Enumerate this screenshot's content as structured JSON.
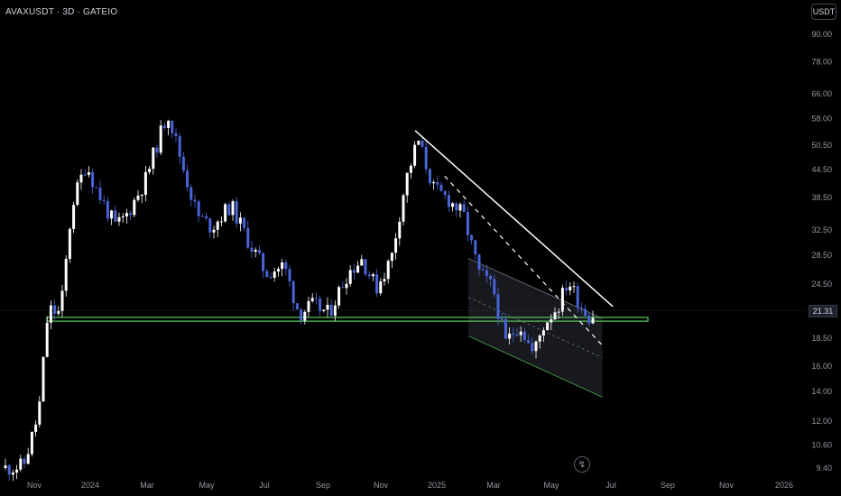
{
  "header": {
    "symbol_line": "AVAXUSDT · 3D · GATEIO"
  },
  "currency_button": "USDT",
  "last_price_label": "21.31",
  "tool_icon": "lightning-icon",
  "colors": {
    "background": "#000000",
    "candle_up": "#ffffff",
    "candle_down": "#4a64d8",
    "support_zone": "#4caf50",
    "trendline": "#ffffff",
    "channel_fill": "#2a2e39",
    "channel_line": "#4caf50",
    "axis_text": "#9598a1"
  },
  "chart_data": {
    "type": "candlestick",
    "title": "AVAXUSDT · 3D · GATEIO",
    "y_scale": "log",
    "y_ticks": [
      "90.00",
      "78.00",
      "66.00",
      "58.00",
      "50.50",
      "44.50",
      "38.50",
      "32.50",
      "28.50",
      "24.50",
      "18.50",
      "16.00",
      "14.00",
      "12.00",
      "10.60",
      "9.40"
    ],
    "x_ticks": [
      "Nov",
      "2024",
      "Mar",
      "May",
      "Jul",
      "Sep",
      "Nov",
      "2025",
      "Mar",
      "May",
      "Jul",
      "Sep",
      "Nov",
      "2026"
    ],
    "last_price": 21.31,
    "support_zone": [
      20.2,
      20.6
    ],
    "price_path": [
      [
        "2023-10-01",
        9.4
      ],
      [
        "2023-10-20",
        9.5
      ],
      [
        "2023-11-05",
        12.5
      ],
      [
        "2023-11-15",
        21.5
      ],
      [
        "2023-11-28",
        21.0
      ],
      [
        "2023-12-10",
        37
      ],
      [
        "2023-12-25",
        46
      ],
      [
        "2024-01-05",
        40
      ],
      [
        "2024-01-25",
        33
      ],
      [
        "2024-02-05",
        35
      ],
      [
        "2024-02-25",
        42
      ],
      [
        "2024-03-10",
        52
      ],
      [
        "2024-03-20",
        60
      ],
      [
        "2024-04-05",
        45
      ],
      [
        "2024-04-20",
        35
      ],
      [
        "2024-05-05",
        33
      ],
      [
        "2024-05-25",
        37
      ],
      [
        "2024-06-15",
        30
      ],
      [
        "2024-07-01",
        26
      ],
      [
        "2024-07-20",
        27
      ],
      [
        "2024-08-05",
        21
      ],
      [
        "2024-08-20",
        22
      ],
      [
        "2024-09-05",
        21
      ],
      [
        "2024-09-25",
        26
      ],
      [
        "2024-10-10",
        28
      ],
      [
        "2024-10-25",
        24
      ],
      [
        "2024-11-10",
        28
      ],
      [
        "2024-11-25",
        42
      ],
      [
        "2024-12-08",
        52
      ],
      [
        "2024-12-25",
        40
      ],
      [
        "2025-01-10",
        38
      ],
      [
        "2025-01-25",
        35
      ],
      [
        "2025-02-10",
        26
      ],
      [
        "2025-02-25",
        24
      ],
      [
        "2025-03-10",
        18
      ],
      [
        "2025-03-25",
        20
      ],
      [
        "2025-04-08",
        17
      ],
      [
        "2025-04-20",
        20
      ],
      [
        "2025-05-05",
        22
      ],
      [
        "2025-05-15",
        25
      ],
      [
        "2025-05-28",
        22
      ],
      [
        "2025-06-08",
        20.5
      ],
      [
        "2025-06-12",
        21.31
      ]
    ],
    "annotations": [
      {
        "type": "trendline",
        "from": [
          "2024-12-05",
          54.5
        ],
        "to": [
          "2025-07-01",
          21.8
        ],
        "style": "solid"
      },
      {
        "type": "trendline",
        "from": [
          "2025-01-05",
          43
        ],
        "to": [
          "2025-06-20",
          17.8
        ],
        "style": "dashed"
      },
      {
        "type": "channel",
        "upper": [
          [
            "2025-01-30",
            28
          ],
          [
            "2025-06-20",
            20.5
          ]
        ],
        "lower": [
          [
            "2025-01-30",
            18.7
          ],
          [
            "2025-06-20",
            13.6
          ]
        ]
      }
    ]
  }
}
